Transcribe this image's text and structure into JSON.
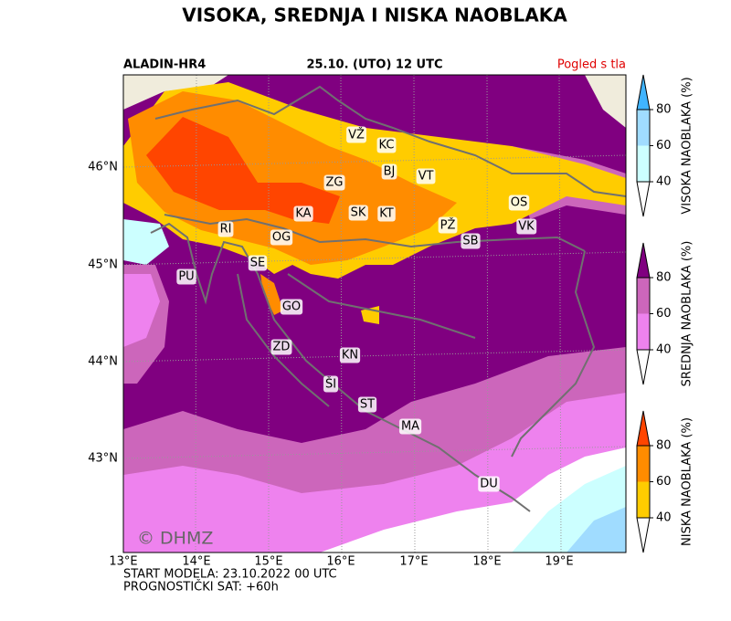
{
  "title": "VISOKA, SREDNJA I NISKA NAOBLAKA",
  "header": {
    "model": "ALADIN-HR4",
    "valid": "25.10. (UTO) 12 UTC",
    "view": "Pogled s tla"
  },
  "map": {
    "lat_labels": [
      "46°N",
      "45°N",
      "44°N",
      "43°N"
    ],
    "lon_labels": [
      "13°E",
      "14°E",
      "15°E",
      "16°E",
      "17°E",
      "18°E",
      "19°E"
    ],
    "cities": [
      "VŽ",
      "KC",
      "BJ",
      "VT",
      "ZG",
      "OS",
      "KA",
      "SK",
      "KT",
      "PŽ",
      "VK",
      "RI",
      "OG",
      "SB",
      "SE",
      "PU",
      "GO",
      "ZD",
      "KN",
      "ŠI",
      "ST",
      "MA",
      "DU"
    ],
    "watermark": "© DHMZ"
  },
  "colorbars": [
    {
      "label": "VISOKA NAOBLAKA (%)",
      "ticks": [
        40,
        60,
        80
      ],
      "colors": [
        "#ffffff",
        "#ccffff",
        "#a0dcff",
        "#40b4ff"
      ]
    },
    {
      "label": "SREDNJA NAOBLAKA (%)",
      "ticks": [
        40,
        60,
        80
      ],
      "colors": [
        "#ffffff",
        "#ee82ee",
        "#cc66bb",
        "#800080"
      ]
    },
    {
      "label": "NISKA NAOBLAKA (%)",
      "ticks": [
        40,
        60,
        80
      ],
      "colors": [
        "#ffffff",
        "#ffcc00",
        "#ff8c00",
        "#ff4500"
      ]
    }
  ],
  "footer": [
    "START MODELA: 23.10.2022 00 UTC",
    "PROGNOSTIČKI SAT: +60h"
  ]
}
